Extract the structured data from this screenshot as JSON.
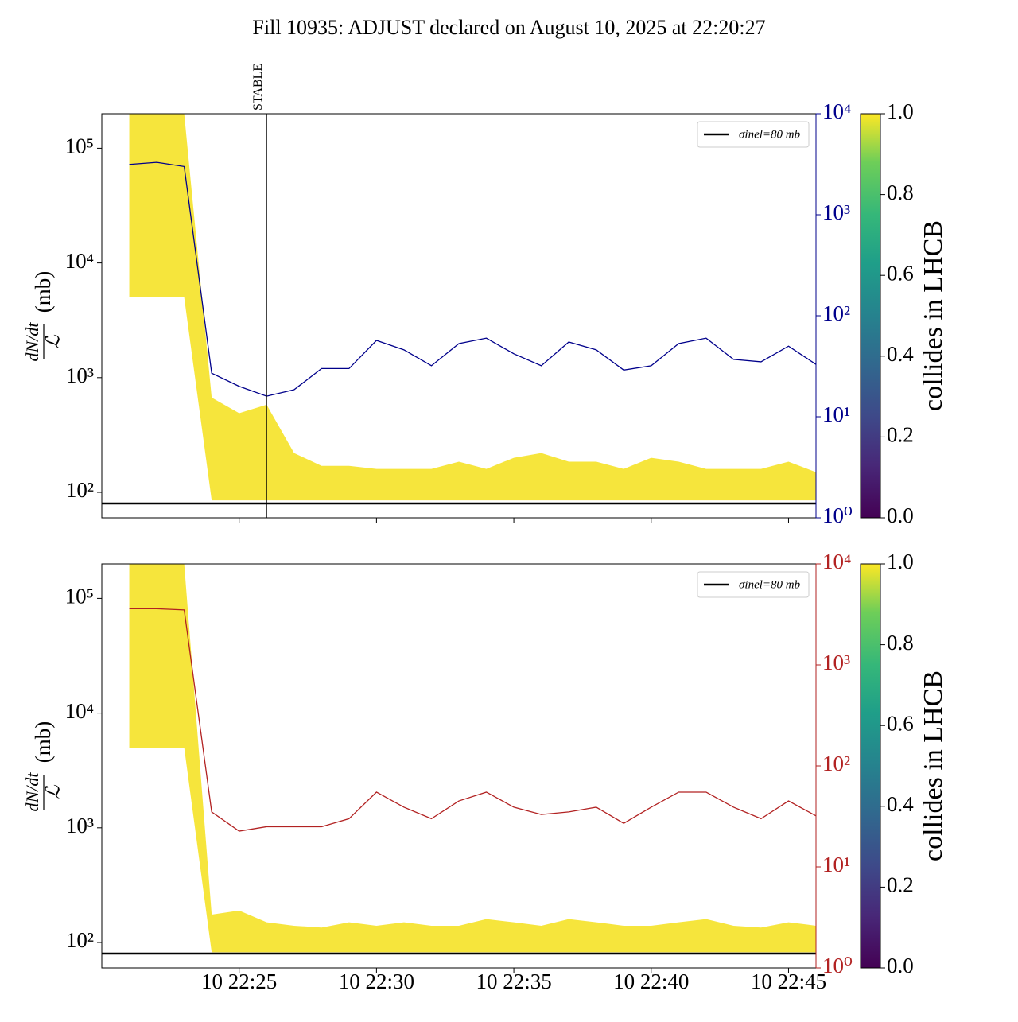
{
  "title": "Fill 10935: ADJUST declared on August 10, 2025 at 22:20:27",
  "chart_data": [
    {
      "type": "line",
      "log_y": true,
      "x": [
        "10 22:21",
        "10 22:22",
        "10 22:23",
        "10 22:24",
        "10 22:25",
        "10 22:26",
        "10 22:27",
        "10 22:28",
        "10 22:29",
        "10 22:30",
        "10 22:31",
        "10 22:32",
        "10 22:33",
        "10 22:34",
        "10 22:35",
        "10 22:36",
        "10 22:37",
        "10 22:38",
        "10 22:39",
        "10 22:40",
        "10 22:41",
        "10 22:42",
        "10 22:43",
        "10 22:44",
        "10 22:45",
        "10 22:46"
      ],
      "xlim": [
        "10 22:20",
        "10 22:46"
      ],
      "ylim": [
        60,
        200000
      ],
      "yticks": [
        {
          "value": 100,
          "label": "10²"
        },
        {
          "value": 1000,
          "label": "10³"
        },
        {
          "value": 10000,
          "label": "10⁴"
        },
        {
          "value": 100000,
          "label": "10⁵"
        }
      ],
      "ylabel": {
        "numerator": "dN/dt",
        "denominator": "ℒ",
        "unit": "(mb)"
      },
      "y2lim": [
        1,
        10000
      ],
      "y2ticks": [
        {
          "value": 1,
          "label": "10⁰"
        },
        {
          "value": 10,
          "label": "10¹"
        },
        {
          "value": 100,
          "label": "10²"
        },
        {
          "value": 1000,
          "label": "10³"
        },
        {
          "value": 10000,
          "label": "10⁴"
        }
      ],
      "y2_color": "#00008b",
      "series": [
        {
          "color": "#00008b",
          "axis": "y2",
          "values": [
            3150,
            3300,
            3000,
            27,
            20,
            16,
            18.5,
            30,
            30,
            57,
            46,
            32,
            53,
            60,
            42,
            32,
            55,
            46,
            29,
            32,
            53,
            60,
            37,
            35,
            50,
            33
          ]
        }
      ],
      "band": {
        "color": "#f5e11a",
        "upper": [
          200000,
          200000,
          200000,
          670,
          490,
          580,
          220,
          170,
          170,
          160,
          160,
          160,
          185,
          160,
          200,
          220,
          185,
          185,
          160,
          200,
          185,
          160,
          160,
          160,
          185,
          150
        ],
        "lower": [
          5000,
          5000,
          5000,
          85,
          85,
          85,
          85,
          85,
          85,
          85,
          85,
          85,
          85,
          85,
          85,
          85,
          85,
          85,
          85,
          85,
          85,
          85,
          85,
          85,
          85,
          85
        ]
      },
      "hline": {
        "name": "σinel=80 mb",
        "value": 80,
        "color": "#000000"
      },
      "legend": "upper right",
      "vline": {
        "x": "10 22:26",
        "label": "STABLE"
      },
      "colorbar": {
        "label": "collides in LHCB",
        "lim": [
          0,
          1
        ],
        "ticks": [
          {
            "value": 0,
            "label": "0.0"
          },
          {
            "value": 0.2,
            "label": "0.2"
          },
          {
            "value": 0.4,
            "label": "0.4"
          },
          {
            "value": 0.6,
            "label": "0.6"
          },
          {
            "value": 0.8,
            "label": "0.8"
          },
          {
            "value": 1,
            "label": "1.0"
          }
        ]
      }
    },
    {
      "type": "line",
      "log_y": true,
      "x": [
        "10 22:21",
        "10 22:22",
        "10 22:23",
        "10 22:24",
        "10 22:25",
        "10 22:26",
        "10 22:27",
        "10 22:28",
        "10 22:29",
        "10 22:30",
        "10 22:31",
        "10 22:32",
        "10 22:33",
        "10 22:34",
        "10 22:35",
        "10 22:36",
        "10 22:37",
        "10 22:38",
        "10 22:39",
        "10 22:40",
        "10 22:41",
        "10 22:42",
        "10 22:43",
        "10 22:44",
        "10 22:45",
        "10 22:46"
      ],
      "xlim": [
        "10 22:20",
        "10 22:46"
      ],
      "xticks": [
        "10 22:25",
        "10 22:30",
        "10 22:35",
        "10 22:40",
        "10 22:45"
      ],
      "ylim": [
        60,
        200000
      ],
      "yticks": [
        {
          "value": 100,
          "label": "10²"
        },
        {
          "value": 1000,
          "label": "10³"
        },
        {
          "value": 10000,
          "label": "10⁴"
        },
        {
          "value": 100000,
          "label": "10⁵"
        }
      ],
      "ylabel": {
        "numerator": "dN/dt",
        "denominator": "ℒ",
        "unit": "(mb)"
      },
      "y2lim": [
        1,
        10000
      ],
      "y2ticks": [
        {
          "value": 1,
          "label": "10⁰"
        },
        {
          "value": 10,
          "label": "10¹"
        },
        {
          "value": 100,
          "label": "10²"
        },
        {
          "value": 1000,
          "label": "10³"
        },
        {
          "value": 10000,
          "label": "10⁴"
        }
      ],
      "y2_color": "#b22222",
      "series": [
        {
          "color": "#b22222",
          "axis": "y2",
          "values": [
            3600,
            3600,
            3500,
            35,
            22.6,
            25,
            25,
            25,
            30,
            55,
            39,
            30,
            45,
            55,
            39,
            33,
            35,
            39,
            27,
            39,
            55,
            55,
            39,
            30,
            45,
            32
          ]
        }
      ],
      "band": {
        "color": "#f5e11a",
        "upper": [
          200000,
          200000,
          200000,
          175,
          190,
          150,
          140,
          135,
          150,
          140,
          150,
          140,
          140,
          160,
          150,
          140,
          160,
          150,
          140,
          140,
          150,
          160,
          140,
          135,
          150,
          140
        ],
        "lower": [
          5000,
          5000,
          5000,
          82,
          82,
          82,
          82,
          82,
          82,
          82,
          82,
          82,
          82,
          82,
          82,
          82,
          82,
          82,
          82,
          82,
          82,
          82,
          82,
          82,
          82,
          82
        ]
      },
      "hline": {
        "name": "σinel=80 mb",
        "value": 80,
        "color": "#000000"
      },
      "legend": "upper right",
      "colorbar": {
        "label": "collides in LHCB",
        "lim": [
          0,
          1
        ],
        "ticks": [
          {
            "value": 0,
            "label": "0.0"
          },
          {
            "value": 0.2,
            "label": "0.2"
          },
          {
            "value": 0.4,
            "label": "0.4"
          },
          {
            "value": 0.6,
            "label": "0.6"
          },
          {
            "value": 0.8,
            "label": "0.8"
          },
          {
            "value": 1,
            "label": "1.0"
          }
        ]
      }
    }
  ]
}
